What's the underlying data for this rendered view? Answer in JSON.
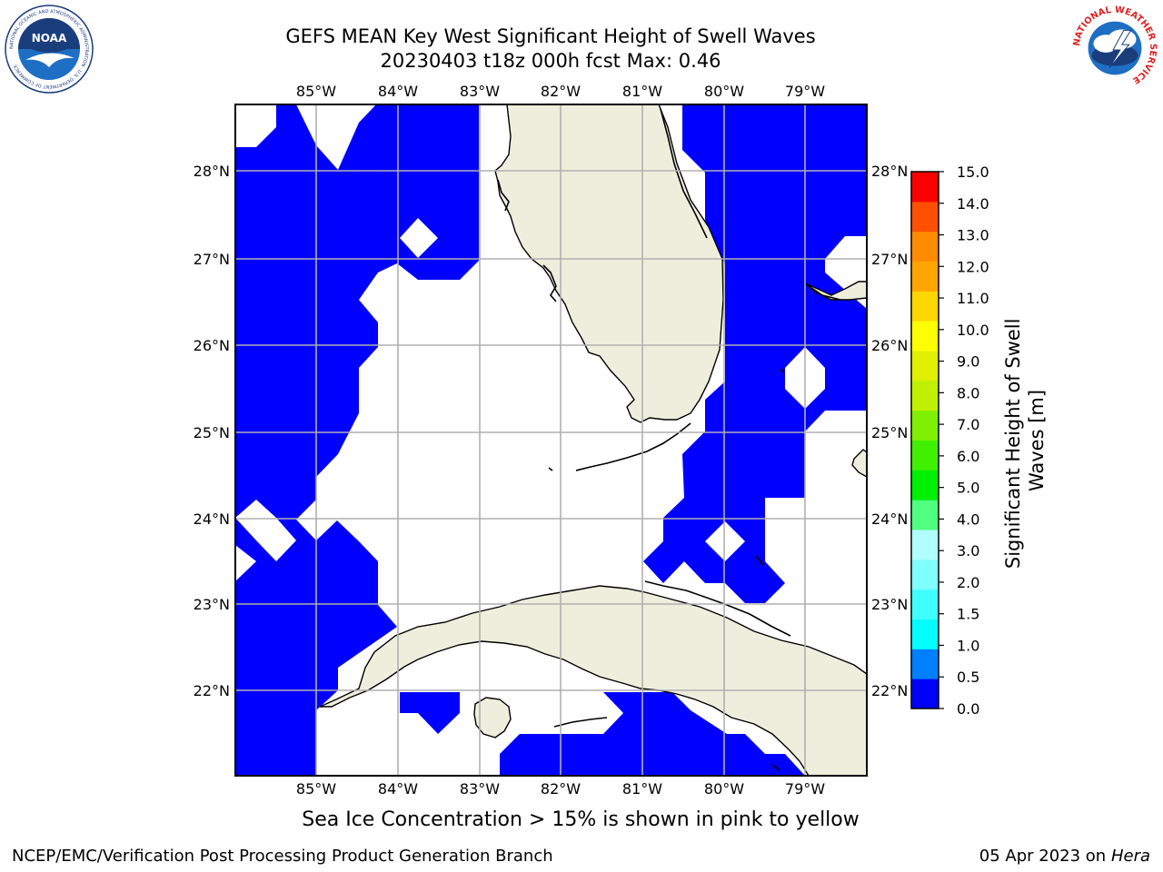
{
  "title_line1": "GEFS MEAN Key West Significant Height of Swell Waves",
  "title_line2": "20230403 t18z 000h fcst   Max: 0.46",
  "subtitle": "Sea Ice Concentration > 15% is shown in pink to yellow",
  "footer_left": "NCEP/EMC/Verification Post Processing Product Generation Branch",
  "footer_right_date": "05 Apr 2023 on ",
  "footer_right_machine": "Hera",
  "logos": {
    "noaa_text": "NOAA",
    "noaa_ring_text": "NATIONAL OCEANIC AND ATMOSPHERIC ADMINISTRATION · U.S. DEPARTMENT OF COMMERCE",
    "nws_ring_text": "NATIONAL WEATHER SERVICE"
  },
  "map": {
    "lon_labels": [
      "85°W",
      "84°W",
      "83°W",
      "82°W",
      "81°W",
      "80°W",
      "79°W"
    ],
    "lat_labels": [
      "28°N",
      "27°N",
      "26°N",
      "25°N",
      "24°N",
      "23°N",
      "22°N"
    ],
    "colors": {
      "ocean_field": "#0000ff",
      "land": "#eeeedd",
      "grid": "#b0b0b0",
      "coast": "#000000"
    }
  },
  "colorbar": {
    "label": "Significant Height of Swell Waves [m]",
    "label_line1": "Significant Height of Swell",
    "label_line2": "Waves [m]",
    "ticks": [
      "15.0",
      "14.0",
      "13.0",
      "12.0",
      "11.0",
      "10.0",
      "9.0",
      "8.0",
      "7.0",
      "6.0",
      "5.0",
      "4.0",
      "3.0",
      "2.0",
      "1.5",
      "1.0",
      "0.5",
      "0.0"
    ],
    "colors_bottom_to_top": [
      "#0000ff",
      "#0080ff",
      "#00ffff",
      "#40ffff",
      "#80ffff",
      "#b0ffff",
      "#50ff80",
      "#00f000",
      "#40f000",
      "#80f000",
      "#c0f000",
      "#e0f000",
      "#ffff00",
      "#ffd700",
      "#ffa500",
      "#ff8c00",
      "#ff5000",
      "#ff0000"
    ]
  }
}
